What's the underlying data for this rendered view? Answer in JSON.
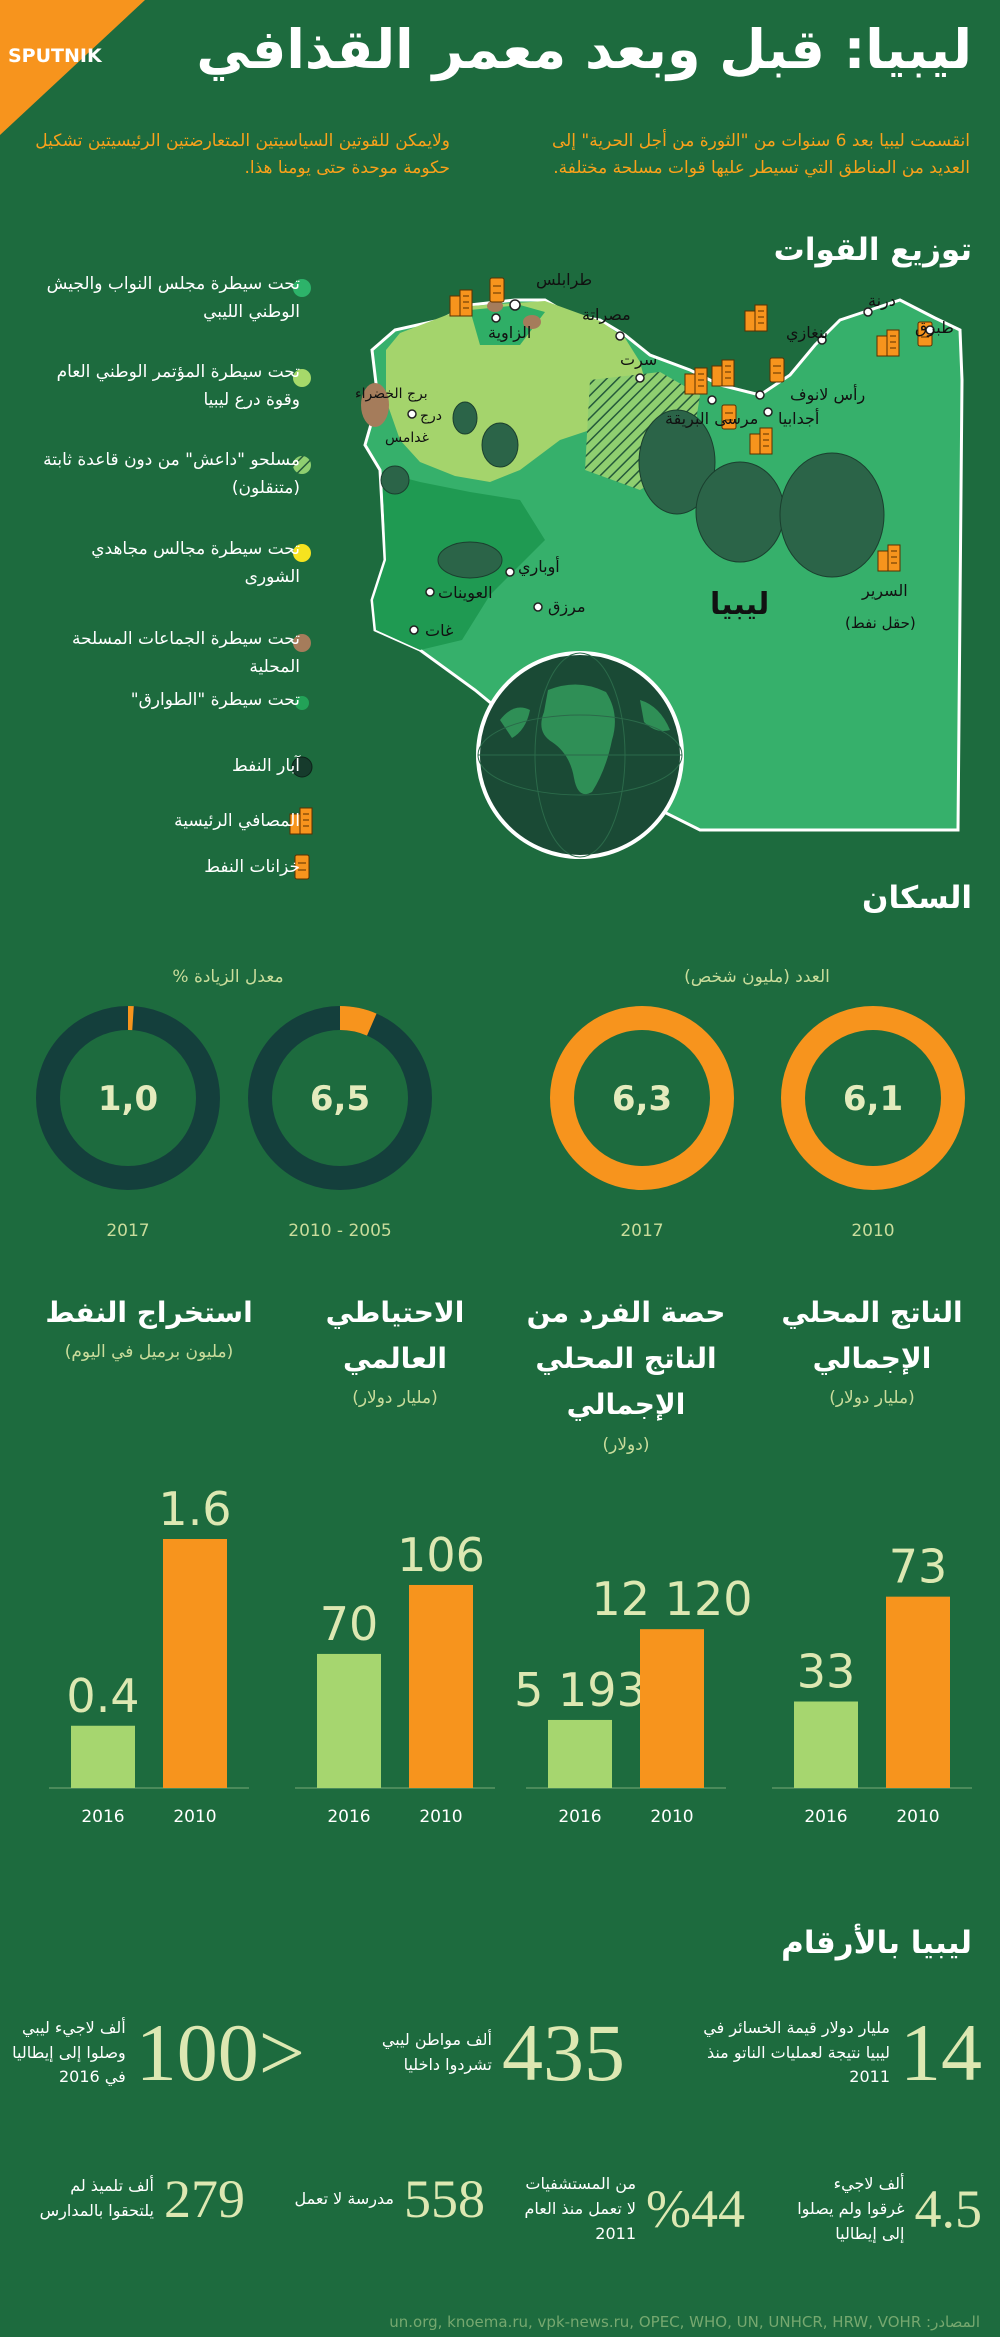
{
  "header": {
    "brand": "SPUTNIK",
    "title": "ليبيا: قبل وبعد معمر القذافي"
  },
  "intro": {
    "right": "انقسمت ليبيا بعد 6 سنوات من \"الثورة من أجل الحرية\" إلى العديد من المناطق التي تسيطر عليها قوات مسلحة مختلفة.",
    "left": "ولايمكن للقوتين السياسيتين المتعارضتين الرئيسيتين تشكيل حكومة موحدة حتى يومنا هذا."
  },
  "forces": {
    "title": "توزيع القوات",
    "legend": [
      "تحت سيطرة مجلس النواب والجيش الوطني الليبي",
      "تحت سيطرة المؤتمر الوطني العام وقوة درع ليبيا",
      "مسلحو \"داعش\" من دون قاعدة ثابتة (متنقلون)",
      "تحت سيطرة مجالس مجاهدي الشورى",
      "تحت سيطرة الجماعات المسلحة المحلية",
      "تحت سيطرة \"الطوارق\"",
      "آبار النفط",
      "المصافي الرئيسية",
      "خزانات النفط"
    ],
    "cities": [
      "طرابلس",
      "الزاوية",
      "مصراتة",
      "سرت",
      "بنغازي",
      "درنة",
      "طبرق",
      "رأس لانوف",
      "أجدابيا",
      "مرسى البريقة",
      "برج الخضراء",
      "درج",
      "غدامس",
      "أوباري",
      "مرزق",
      "غات",
      "العوينات",
      "السرير",
      "(حقل نفط)"
    ],
    "country": "ليبيا"
  },
  "population": {
    "title": "السكان"
  },
  "chart_data": [
    {
      "type": "donut",
      "title": "العدد (مليون شخص)",
      "categories": [
        "2010",
        "2017"
      ],
      "values": [
        6.1,
        6.3
      ],
      "value_labels": [
        "6,1",
        "6,3"
      ],
      "color": "#f7941d"
    },
    {
      "type": "donut",
      "title": "معدل الزيادة %",
      "categories": [
        "2010 - 2005",
        "2017"
      ],
      "values": [
        6.5,
        1.0
      ],
      "value_labels": [
        "6,5",
        "1,0"
      ],
      "color": "#f7941d",
      "track_color": "#143f3c",
      "ylim": [
        0,
        100
      ]
    },
    {
      "type": "bar",
      "title": "الناتج المحلي الإجمالي",
      "subtitle": "(مليار دولار)",
      "categories": [
        "2016",
        "2010"
      ],
      "values": [
        33,
        73
      ],
      "colors": [
        "#a6d66f",
        "#f7941d"
      ],
      "ylim": [
        0,
        95
      ]
    },
    {
      "type": "bar",
      "title": "حصة الفرد من الناتج المحلي الإجمالي",
      "subtitle": "(دولار)",
      "categories": [
        "2016",
        "2010"
      ],
      "values": [
        5193,
        12120
      ],
      "value_labels": [
        "5 193",
        "12 120"
      ],
      "colors": [
        "#a6d66f",
        "#f7941d"
      ],
      "ylim": [
        0,
        19000
      ]
    },
    {
      "type": "bar",
      "title": "الاحتياطي العالمي",
      "subtitle": "(مليار دولار)",
      "categories": [
        "2016",
        "2010"
      ],
      "values": [
        70,
        106
      ],
      "colors": [
        "#a6d66f",
        "#f7941d"
      ],
      "ylim": [
        0,
        130
      ]
    },
    {
      "type": "bar",
      "title": "استخراج النفط",
      "subtitle": "(مليون برميل في اليوم)",
      "categories": [
        "2016",
        "2010"
      ],
      "values": [
        0.4,
        1.6
      ],
      "colors": [
        "#a6d66f",
        "#f7941d"
      ],
      "ylim": [
        0,
        1.6
      ]
    }
  ],
  "numbers": {
    "title": "ليبيا بالأرقام",
    "items": [
      {
        "value": "14",
        "text": "مليار دولار قيمة الخسائر في ليبيا نتيجة لعمليات الناتو منذ 2011"
      },
      {
        "value": "435",
        "text": "ألف مواطن ليبي تشردوا داخليا"
      },
      {
        "value": "100>",
        "text": "ألف لاجيء ليبي وصلوا إلى إيطاليا في 2016"
      },
      {
        "value": "4.5",
        "text": "ألف لاجيء غرقوا ولم يصلوا إلى إيطاليا"
      },
      {
        "value": "%44",
        "text": "من المستشفيات لا تعمل منذ العام 2011"
      },
      {
        "value": "558",
        "text": "مدرسة لا تعمل"
      },
      {
        "value": "279",
        "text": "ألف تلميذ لم يلتحقوا بالمدارس"
      }
    ]
  },
  "sources": "المصادر: un.org, knoema.ru, vpk-news.ru, OPEC, WHO, UN, UNHCR, HRW, VOHR"
}
